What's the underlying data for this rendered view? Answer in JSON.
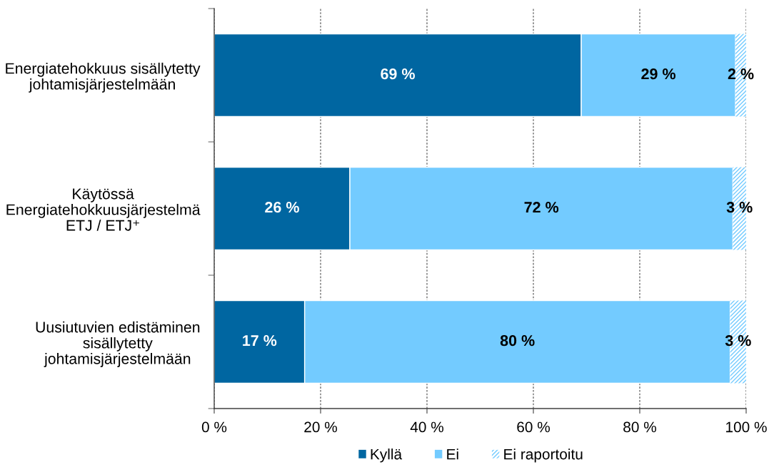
{
  "chart_data": {
    "type": "bar",
    "orientation": "horizontal",
    "stacked": true,
    "categories": [
      "Energiatehokkuus sisällytetty\njohtamisjärjestelmään",
      "Käytössä\nEnergiatehokkuusjärjestelmä\nETJ / ETJ⁺",
      "Uusiutuvien edistäminen\nsisällytetty\njohtamisjärjestelmään"
    ],
    "series": [
      {
        "name": "Kyllä",
        "color": "#0066a1",
        "values": [
          69,
          25.5,
          17
        ],
        "value_labels": [
          "69 %",
          "26 %",
          "17 %"
        ]
      },
      {
        "name": "Ei",
        "color": "#73cbff",
        "values": [
          29,
          72,
          80
        ],
        "value_labels": [
          "29 %",
          "72 %",
          "80 %"
        ]
      },
      {
        "name": "Ei raportoitu",
        "color": "#73cbff",
        "values": [
          2,
          2.5,
          3
        ],
        "value_labels": [
          "2 %",
          "3 %",
          "3 %"
        ]
      }
    ],
    "xlim": [
      0,
      100
    ],
    "xticks": [
      {
        "value": 0,
        "label": "0 %"
      },
      {
        "value": 20,
        "label": "20 %"
      },
      {
        "value": 40,
        "label": "40 %"
      },
      {
        "value": 60,
        "label": "60 %"
      },
      {
        "value": 80,
        "label": "80 %"
      },
      {
        "value": 100,
        "label": "100 %"
      }
    ],
    "grid": "x",
    "legend": "bottom"
  }
}
